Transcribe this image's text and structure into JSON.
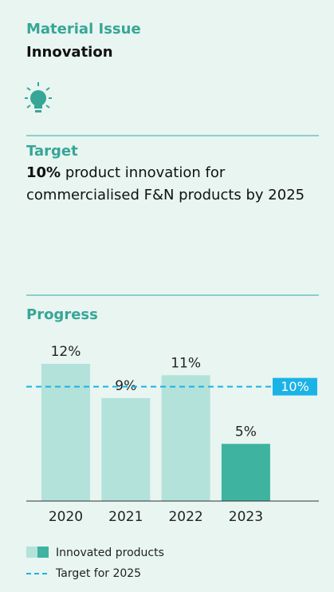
{
  "header": {
    "label": "Material Issue",
    "title": "Innovation"
  },
  "target": {
    "heading": "Target",
    "highlight": "10%",
    "text": "product innovation for commercialised F&N products by 2025"
  },
  "chart_data": {
    "type": "bar",
    "title": "Progress",
    "categories": [
      "2020",
      "2021",
      "2022",
      "2023"
    ],
    "series": [
      {
        "name": "Innovated products",
        "color": "#b3e2da",
        "values": [
          12,
          9,
          11,
          5
        ],
        "value_labels": [
          "12%",
          "9%",
          "11%",
          "5%"
        ]
      }
    ],
    "colors": [
      "#b3e2da",
      "#b3e2da",
      "#b3e2da",
      "#3db3a0"
    ],
    "target": {
      "name": "Target for 2025",
      "value": 10,
      "label": "10%",
      "color": "#1bb3e6"
    },
    "ylim": [
      0,
      12
    ]
  }
}
